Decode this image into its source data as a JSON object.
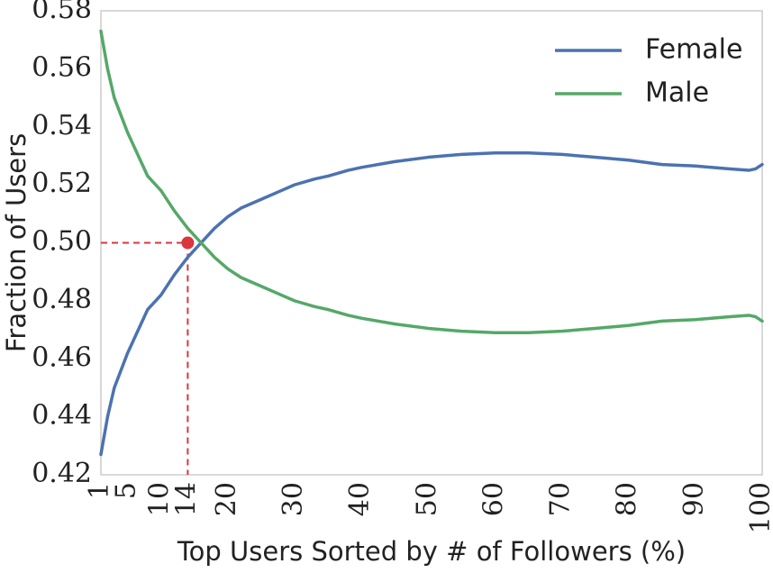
{
  "chart_data": {
    "type": "line",
    "title": "",
    "xlabel": "Top Users Sorted by # of Followers (%)",
    "ylabel": "Fraction of Users",
    "xlim": [
      1,
      100
    ],
    "ylim": [
      0.42,
      0.58
    ],
    "xticks": [
      1,
      5,
      10,
      14,
      20,
      30,
      40,
      50,
      60,
      70,
      80,
      90,
      100
    ],
    "xtick_labels": [
      "1",
      "5",
      "10",
      "14",
      "20",
      "30",
      "40",
      "50",
      "60",
      "70",
      "80",
      "90",
      "100"
    ],
    "yticks": [
      0.42,
      0.44,
      0.46,
      0.48,
      0.5,
      0.52,
      0.54,
      0.56,
      0.58
    ],
    "ytick_labels": [
      "0.42",
      "0.44",
      "0.46",
      "0.48",
      "0.50",
      "0.52",
      "0.54",
      "0.56",
      "0.58"
    ],
    "grid": false,
    "legend_position": "top-right",
    "series": [
      {
        "name": "Female",
        "color": "#4c72b0",
        "x": [
          1,
          2,
          3,
          5,
          7,
          8,
          10,
          12,
          14,
          16,
          18,
          20,
          22,
          25,
          28,
          30,
          33,
          35,
          38,
          40,
          45,
          50,
          55,
          60,
          65,
          70,
          75,
          80,
          85,
          90,
          95,
          98,
          99,
          100
        ],
        "y": [
          0.427,
          0.44,
          0.45,
          0.462,
          0.472,
          0.477,
          0.482,
          0.489,
          0.495,
          0.5,
          0.505,
          0.509,
          0.512,
          0.515,
          0.518,
          0.52,
          0.522,
          0.523,
          0.525,
          0.526,
          0.528,
          0.5295,
          0.5305,
          0.531,
          0.531,
          0.5305,
          0.5295,
          0.5285,
          0.527,
          0.5265,
          0.5255,
          0.525,
          0.5255,
          0.527
        ]
      },
      {
        "name": "Male",
        "color": "#55a868",
        "x": [
          1,
          2,
          3,
          5,
          7,
          8,
          10,
          12,
          14,
          16,
          18,
          20,
          22,
          25,
          28,
          30,
          33,
          35,
          38,
          40,
          45,
          50,
          55,
          60,
          65,
          70,
          75,
          80,
          85,
          90,
          95,
          98,
          99,
          100
        ],
        "y": [
          0.573,
          0.56,
          0.55,
          0.538,
          0.528,
          0.523,
          0.518,
          0.511,
          0.505,
          0.5,
          0.495,
          0.491,
          0.488,
          0.485,
          0.482,
          0.48,
          0.478,
          0.477,
          0.475,
          0.474,
          0.472,
          0.4705,
          0.4695,
          0.469,
          0.469,
          0.4695,
          0.4705,
          0.4715,
          0.473,
          0.4735,
          0.4745,
          0.475,
          0.4745,
          0.473
        ]
      }
    ],
    "annotation": {
      "x": 14,
      "y": 0.5,
      "color": "#d9363e",
      "style": "dashed reference lines to both axes with a marker at the crossover"
    }
  }
}
